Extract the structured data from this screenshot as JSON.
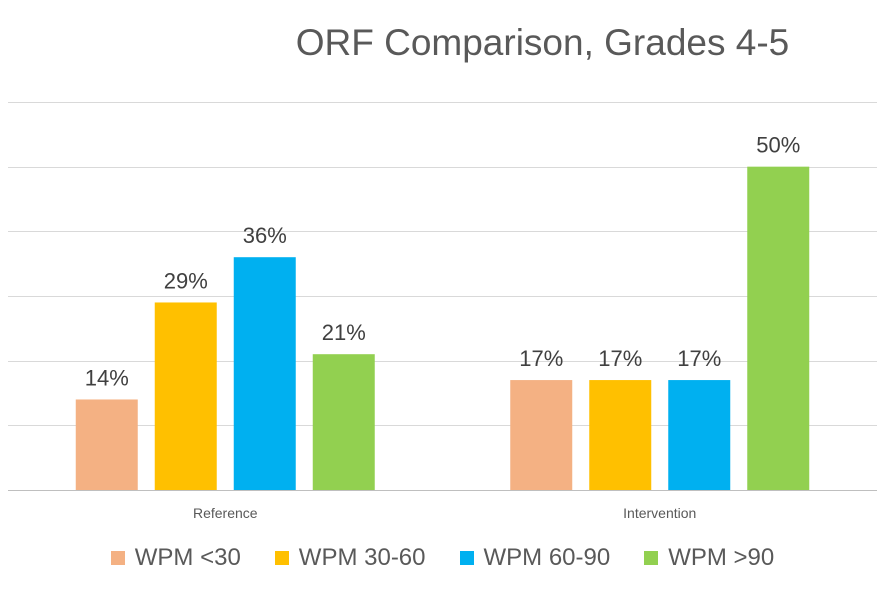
{
  "chart_data": {
    "type": "bar",
    "title": "ORF Comparison, Grades 4-5",
    "categories": [
      "Reference",
      "Intervention"
    ],
    "series": [
      {
        "name": "WPM <30",
        "color": "#F4B183",
        "values": [
          14,
          17
        ],
        "labels": [
          "14%",
          "17%"
        ]
      },
      {
        "name": "WPM 30-60",
        "color": "#FFC000",
        "values": [
          29,
          17
        ],
        "labels": [
          "29%",
          "17%"
        ]
      },
      {
        "name": "WPM 60-90",
        "color": "#00B0F0",
        "values": [
          36,
          17
        ],
        "labels": [
          "36%",
          "17%"
        ]
      },
      {
        "name": "WPM >90",
        "color": "#92D050",
        "values": [
          21,
          50
        ],
        "labels": [
          "21%",
          "50%"
        ]
      }
    ],
    "ylim": [
      0,
      60
    ],
    "ytick_step": 10,
    "grid": true,
    "legend_position": "bottom"
  }
}
